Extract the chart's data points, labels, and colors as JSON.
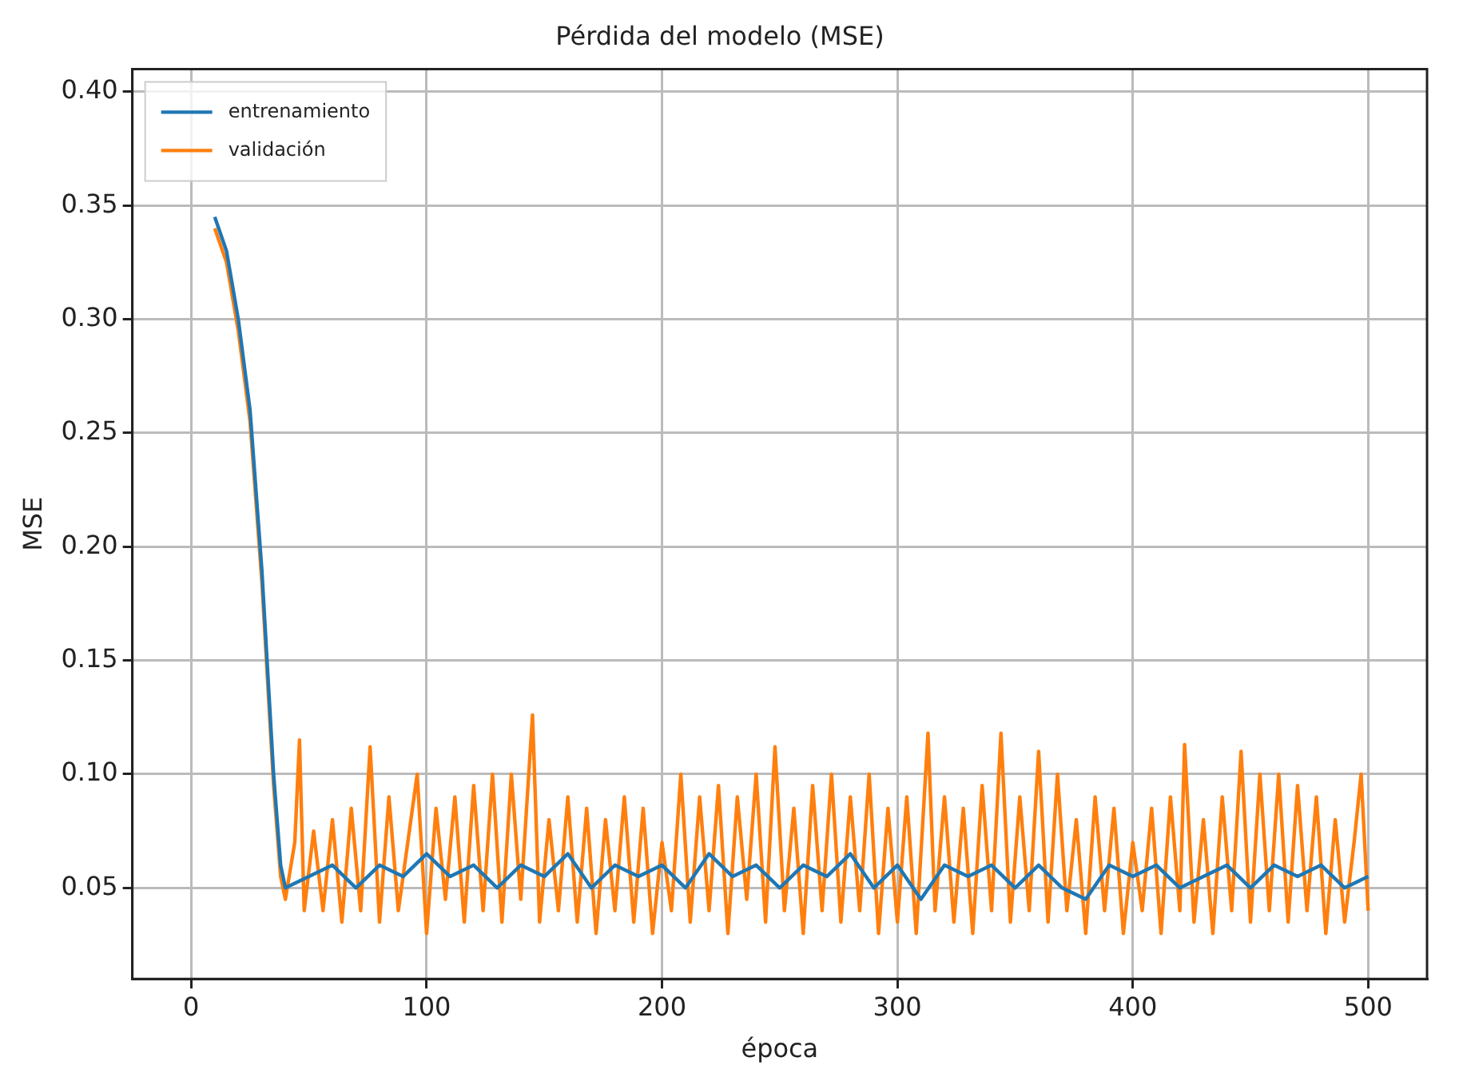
{
  "chart_data": {
    "type": "line",
    "title": "Pérdida del modelo (MSE)",
    "xlabel": "época",
    "ylabel": "MSE",
    "xlim": [
      -25,
      525
    ],
    "ylim": [
      0.01,
      0.41
    ],
    "xticks": [
      0,
      100,
      200,
      300,
      400,
      500
    ],
    "yticks": [
      0.05,
      {
        "value": 0.1,
        "label": "0.10"
      },
      0.15,
      {
        "value": 0.2,
        "label": "0.20"
      },
      0.25,
      {
        "value": 0.3,
        "label": "0.30"
      },
      0.35,
      {
        "value": 0.4,
        "label": "0.40"
      }
    ],
    "grid": true,
    "legend": "top left",
    "line_style": "solid",
    "marker": "none",
    "series": [
      {
        "name": "entrenamiento",
        "color": "#1f77b4",
        "x": [
          10,
          15,
          20,
          25,
          30,
          35,
          38,
          40,
          50,
          60,
          70,
          80,
          90,
          100,
          110,
          120,
          130,
          140,
          150,
          160,
          170,
          180,
          190,
          200,
          210,
          220,
          230,
          240,
          250,
          260,
          270,
          280,
          290,
          300,
          310,
          320,
          330,
          340,
          350,
          360,
          370,
          380,
          390,
          400,
          410,
          420,
          430,
          440,
          450,
          460,
          470,
          480,
          490,
          500
        ],
        "values": [
          0.345,
          0.33,
          0.3,
          0.26,
          0.19,
          0.1,
          0.06,
          0.05,
          0.055,
          0.06,
          0.05,
          0.06,
          0.055,
          0.065,
          0.055,
          0.06,
          0.05,
          0.06,
          0.055,
          0.065,
          0.05,
          0.06,
          0.055,
          0.06,
          0.05,
          0.065,
          0.055,
          0.06,
          0.05,
          0.06,
          0.055,
          0.065,
          0.05,
          0.06,
          0.045,
          0.06,
          0.055,
          0.06,
          0.05,
          0.06,
          0.05,
          0.045,
          0.06,
          0.055,
          0.06,
          0.05,
          0.055,
          0.06,
          0.05,
          0.06,
          0.055,
          0.06,
          0.05,
          0.055
        ]
      },
      {
        "name": "validación",
        "color": "#ff7f0e",
        "x": [
          10,
          15,
          20,
          25,
          30,
          35,
          38,
          40,
          44,
          46,
          48,
          52,
          56,
          60,
          64,
          68,
          72,
          76,
          80,
          84,
          88,
          92,
          96,
          100,
          104,
          108,
          112,
          116,
          120,
          124,
          128,
          132,
          136,
          140,
          145,
          148,
          152,
          156,
          160,
          164,
          168,
          172,
          176,
          180,
          184,
          188,
          192,
          196,
          200,
          204,
          208,
          212,
          216,
          220,
          224,
          228,
          232,
          236,
          240,
          244,
          248,
          252,
          256,
          260,
          264,
          268,
          272,
          276,
          280,
          284,
          288,
          292,
          296,
          300,
          304,
          308,
          313,
          316,
          320,
          324,
          328,
          332,
          336,
          340,
          344,
          348,
          352,
          356,
          360,
          364,
          368,
          372,
          376,
          380,
          384,
          388,
          392,
          396,
          400,
          404,
          408,
          412,
          416,
          420,
          422,
          426,
          430,
          434,
          438,
          442,
          446,
          450,
          454,
          458,
          462,
          466,
          470,
          474,
          478,
          482,
          486,
          490,
          494,
          497,
          500
        ],
        "values": [
          0.34,
          0.325,
          0.295,
          0.255,
          0.185,
          0.095,
          0.055,
          0.045,
          0.07,
          0.115,
          0.04,
          0.075,
          0.04,
          0.08,
          0.035,
          0.085,
          0.04,
          0.112,
          0.035,
          0.09,
          0.04,
          0.07,
          0.1,
          0.03,
          0.085,
          0.045,
          0.09,
          0.035,
          0.095,
          0.04,
          0.1,
          0.035,
          0.1,
          0.045,
          0.126,
          0.035,
          0.08,
          0.04,
          0.09,
          0.035,
          0.085,
          0.03,
          0.08,
          0.04,
          0.09,
          0.035,
          0.085,
          0.03,
          0.07,
          0.04,
          0.1,
          0.035,
          0.09,
          0.04,
          0.095,
          0.03,
          0.09,
          0.045,
          0.1,
          0.035,
          0.112,
          0.04,
          0.085,
          0.03,
          0.095,
          0.04,
          0.1,
          0.035,
          0.09,
          0.04,
          0.1,
          0.03,
          0.085,
          0.035,
          0.09,
          0.03,
          0.118,
          0.04,
          0.09,
          0.035,
          0.085,
          0.03,
          0.095,
          0.04,
          0.118,
          0.035,
          0.09,
          0.04,
          0.11,
          0.035,
          0.1,
          0.04,
          0.08,
          0.03,
          0.09,
          0.04,
          0.085,
          0.03,
          0.07,
          0.04,
          0.085,
          0.03,
          0.09,
          0.04,
          0.113,
          0.035,
          0.08,
          0.03,
          0.09,
          0.04,
          0.11,
          0.035,
          0.1,
          0.04,
          0.1,
          0.035,
          0.095,
          0.04,
          0.09,
          0.03,
          0.08,
          0.035,
          0.07,
          0.1,
          0.04
        ]
      }
    ]
  }
}
